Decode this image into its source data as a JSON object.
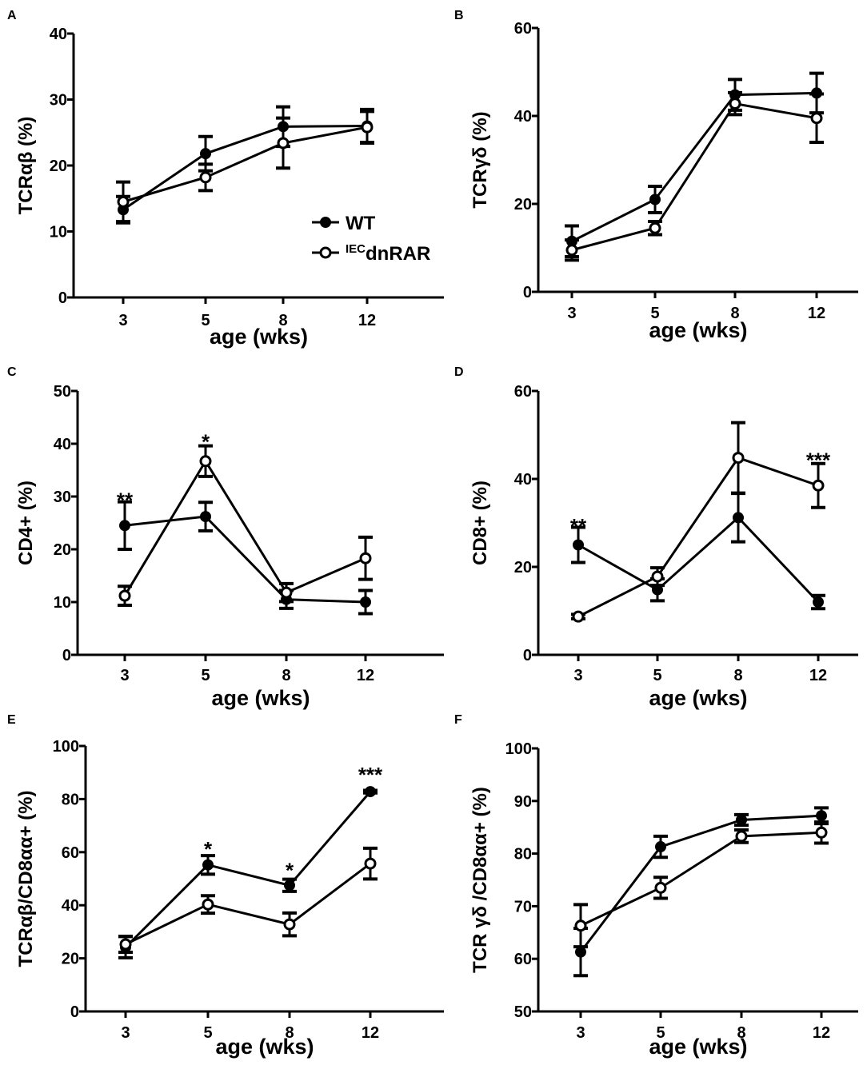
{
  "legend": {
    "wt_label": "WT",
    "mut_sup": "IEC",
    "mut_main": "dnRAR"
  },
  "colors": {
    "ink": "#000000",
    "open_fill": "#ffffff"
  },
  "chart_data": [
    {
      "type": "line",
      "panel": "A",
      "xlabel": "age (wks)",
      "ylabel": "TCRαβ  (%)",
      "categories": [
        "3",
        "5",
        "8",
        "12"
      ],
      "x": [
        3,
        5,
        8,
        12
      ],
      "ylim": [
        0,
        40
      ],
      "yticks": [
        0,
        10,
        20,
        30,
        40
      ],
      "series": [
        {
          "name": "WT",
          "marker": "filled",
          "values": [
            13.3,
            21.8,
            25.9,
            26.0
          ],
          "err": [
            2.0,
            2.6,
            3.0,
            2.5
          ]
        },
        {
          "name": "IECdnRAR",
          "marker": "open",
          "values": [
            14.5,
            18.2,
            23.4,
            25.8
          ],
          "err": [
            3.0,
            2.0,
            3.8,
            2.4
          ]
        }
      ],
      "significance": [],
      "legend": true
    },
    {
      "type": "line",
      "panel": "B",
      "xlabel": "age (wks)",
      "ylabel": "TCRγδ  (%)",
      "categories": [
        "3",
        "5",
        "8",
        "12"
      ],
      "x": [
        3,
        5,
        8,
        12
      ],
      "ylim": [
        0,
        60
      ],
      "yticks": [
        0,
        20,
        40,
        60
      ],
      "series": [
        {
          "name": "WT",
          "marker": "filled",
          "values": [
            11.5,
            21.0,
            44.8,
            45.2
          ],
          "err": [
            3.5,
            3.0,
            3.5,
            4.5
          ]
        },
        {
          "name": "IECdnRAR",
          "marker": "open",
          "values": [
            9.5,
            14.5,
            42.8,
            39.5
          ],
          "err": [
            2.3,
            1.5,
            2.5,
            5.5
          ]
        }
      ],
      "significance": [],
      "legend": false
    },
    {
      "type": "line",
      "panel": "C",
      "xlabel": "age (wks)",
      "ylabel": "CD4+ (%)",
      "categories": [
        "3",
        "5",
        "8",
        "12"
      ],
      "x": [
        3,
        5,
        8,
        12
      ],
      "ylim": [
        0,
        50
      ],
      "yticks": [
        0,
        10,
        20,
        30,
        40,
        50
      ],
      "series": [
        {
          "name": "WT",
          "marker": "filled",
          "values": [
            24.5,
            26.2,
            10.5,
            10.0
          ],
          "err": [
            4.5,
            2.7,
            1.7,
            2.2
          ]
        },
        {
          "name": "IECdnRAR",
          "marker": "open",
          "values": [
            11.2,
            36.7,
            11.8,
            18.3
          ],
          "err": [
            1.8,
            2.9,
            1.7,
            4.0
          ]
        }
      ],
      "significance": [
        {
          "x": 3,
          "label": "**",
          "y": 29.5
        },
        {
          "x": 5,
          "label": "*",
          "y": 40.5
        }
      ],
      "legend": false
    },
    {
      "type": "line",
      "panel": "D",
      "xlabel": "age (wks)",
      "ylabel": "CD8+ (%)",
      "categories": [
        "3",
        "5",
        "8",
        "12"
      ],
      "x": [
        3,
        5,
        8,
        12
      ],
      "ylim": [
        0,
        60
      ],
      "yticks": [
        0,
        20,
        40,
        60
      ],
      "series": [
        {
          "name": "WT",
          "marker": "filled",
          "values": [
            25.0,
            14.8,
            31.2,
            12.0
          ],
          "err": [
            4.0,
            2.5,
            5.5,
            1.5
          ]
        },
        {
          "name": "IECdnRAR",
          "marker": "open",
          "values": [
            8.7,
            17.8,
            44.8,
            38.5
          ],
          "err": [
            0.5,
            2.0,
            8.0,
            5.0
          ]
        }
      ],
      "significance": [
        {
          "x": 3,
          "label": "**",
          "y": 29.5
        },
        {
          "x": 12,
          "label": "***",
          "y": 44.5
        }
      ],
      "legend": false
    },
    {
      "type": "line",
      "panel": "E",
      "xlabel": "age (wks)",
      "ylabel": "TCRαβ/CD8αα+ (%)",
      "categories": [
        "3",
        "5",
        "8",
        "12"
      ],
      "x": [
        3,
        5,
        8,
        12
      ],
      "ylim": [
        0,
        100
      ],
      "yticks": [
        0,
        20,
        40,
        60,
        80,
        100
      ],
      "series": [
        {
          "name": "WT",
          "marker": "filled",
          "values": [
            24.2,
            55.2,
            47.5,
            82.8
          ],
          "err": [
            4.0,
            3.5,
            2.3,
            0.5
          ]
        },
        {
          "name": "IECdnRAR",
          "marker": "open",
          "values": [
            25.3,
            40.3,
            32.8,
            55.7
          ],
          "err": [
            3.0,
            3.3,
            4.3,
            5.8
          ]
        }
      ],
      "significance": [
        {
          "x": 5,
          "label": "*",
          "y": 61.5
        },
        {
          "x": 8,
          "label": "*",
          "y": 53.5
        },
        {
          "x": 12,
          "label": "***",
          "y": 89.5
        }
      ],
      "legend": false
    },
    {
      "type": "line",
      "panel": "F",
      "xlabel": "age (wks)",
      "ylabel": "TCR γδ /CD8αα+ (%)",
      "categories": [
        "3",
        "5",
        "8",
        "12"
      ],
      "x": [
        3,
        5,
        8,
        12
      ],
      "ylim": [
        50,
        100
      ],
      "yticks": [
        50,
        60,
        70,
        80,
        90,
        100
      ],
      "series": [
        {
          "name": "WT",
          "marker": "filled",
          "values": [
            61.3,
            81.3,
            86.4,
            87.2
          ],
          "err": [
            4.5,
            2.0,
            1.0,
            1.5
          ]
        },
        {
          "name": "IECdnRAR",
          "marker": "open",
          "values": [
            66.3,
            73.5,
            83.3,
            84.0
          ],
          "err": [
            4.0,
            2.0,
            1.2,
            2.0
          ]
        }
      ],
      "significance": [],
      "legend": false
    }
  ]
}
